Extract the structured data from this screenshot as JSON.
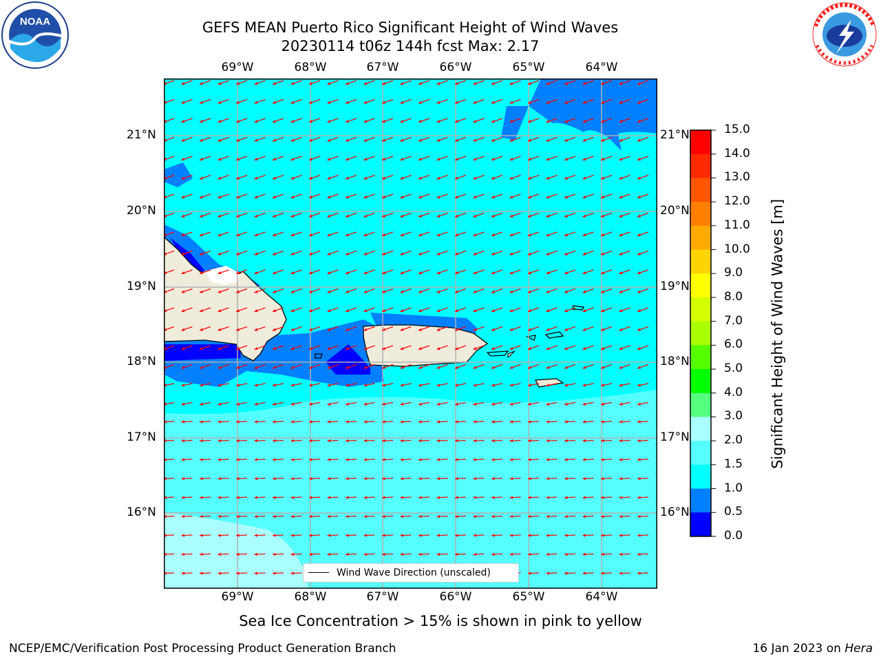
{
  "header": {
    "title_line1": "GEFS MEAN Puerto Rico Significant Height of Wind Waves",
    "title_line2": "20230114 t06z 144h fcst   Max: 2.17"
  },
  "map": {
    "lon_labels": [
      "69°W",
      "68°W",
      "67°W",
      "66°W",
      "65°W",
      "64°W"
    ],
    "lat_labels": [
      "21°N",
      "20°N",
      "19°N",
      "18°N",
      "17°N",
      "16°N"
    ],
    "legend_label": "Wind Wave Direction (unscaled)",
    "arrow_color": "#ff0000",
    "land_color": "#efecdc"
  },
  "colorbar": {
    "label": "Significant Height of Wind Waves [m]",
    "ticks": [
      "15.0",
      "14.0",
      "13.0",
      "12.0",
      "11.0",
      "10.0",
      "9.0",
      "8.0",
      "7.0",
      "6.0",
      "5.0",
      "4.0",
      "3.0",
      "2.0",
      "1.5",
      "1.0",
      "0.5",
      "0.0"
    ],
    "colors_top_to_bottom": [
      "#ff0000",
      "#ff2a00",
      "#ff5500",
      "#ff7f00",
      "#ffaa00",
      "#ffd400",
      "#ffff00",
      "#d4ff00",
      "#aaff00",
      "#55ff00",
      "#00ff00",
      "#55ff80",
      "#aaffff",
      "#55ffff",
      "#00ffff",
      "#0080ff",
      "#0000ff"
    ]
  },
  "logos": {
    "noaa_text": "NOAA",
    "nws_text": "NATIONAL WEATHER SERVICE"
  },
  "footer": {
    "subtitle": "Sea Ice Concentration > 15% is shown in pink to yellow",
    "left": "NCEP/EMC/Verification Post Processing Product Generation Branch",
    "right_date": "16 Jan 2023 on ",
    "right_host": "Hera"
  }
}
